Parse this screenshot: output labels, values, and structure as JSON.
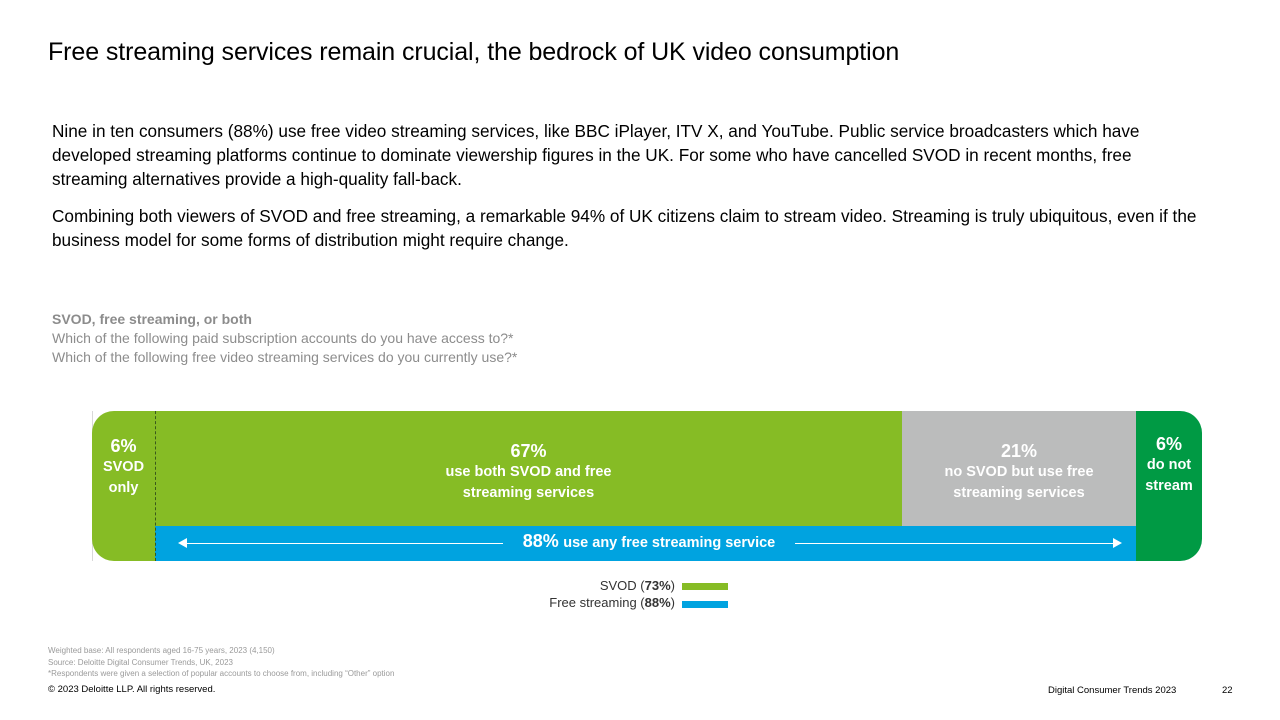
{
  "title": "Free streaming services remain crucial, the bedrock of UK video consumption",
  "paragraphs": [
    "Nine in ten consumers (88%) use free video streaming services, like BBC iPlayer, ITV X, and YouTube. Public service broadcasters which have developed streaming platforms continue to dominate viewership figures in the UK. For some who have cancelled SVOD in recent months, free streaming alternatives provide a high-quality fall-back.",
    "Combining both viewers of SVOD and free streaming, a remarkable 94% of UK citizens claim to stream video. Streaming is truly ubiquitous, even if the business model for some forms of distribution might require change."
  ],
  "chart_subtitle": {
    "heading": "SVOD, free streaming, or both",
    "question1": "Which of the following paid subscription accounts do you have access to?*",
    "question2": "Which of the following free video streaming services do you currently use?*"
  },
  "chart_data": {
    "type": "bar",
    "orientation": "horizontal-stacked",
    "segments": [
      {
        "value": 6,
        "pct_label": "6%",
        "label_line1": "SVOD",
        "label_line2": "only",
        "color": "#86bc25"
      },
      {
        "value": 67,
        "pct_label": "67%",
        "label_line1": "use both SVOD and free",
        "label_line2": "streaming services",
        "color": "#86bc25"
      },
      {
        "value": 21,
        "pct_label": "21%",
        "label_line1": "no SVOD but use free",
        "label_line2": "streaming services",
        "color": "#bbbcbc"
      },
      {
        "value": 6,
        "pct_label": "6%",
        "label_line1": "do not",
        "label_line2": "stream",
        "color": "#009a44"
      }
    ],
    "free_streaming_bar": {
      "value": 88,
      "pct_label": "88%",
      "label": "use any free streaming service",
      "color": "#00a3e0"
    },
    "legend": [
      {
        "name": "SVOD",
        "value": "73%",
        "color": "#86bc25"
      },
      {
        "name": "Free streaming",
        "value": "88%",
        "color": "#00a3e0"
      }
    ]
  },
  "notes": [
    "Weighted base: All respondents aged 16-75 years, 2023 (4,150)",
    "Source: Deloitte Digital Consumer Trends, UK, 2023",
    "*Respondents were given a selection of popular accounts to choose from, including “Other” option"
  ],
  "footer": {
    "copyright": "© 2023 Deloitte LLP. All rights reserved.",
    "publication": "Digital Consumer Trends 2023",
    "page_number": "22"
  }
}
